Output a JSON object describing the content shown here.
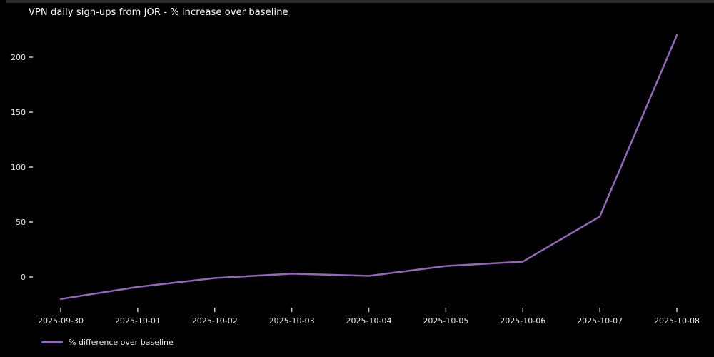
{
  "title": "VPN daily sign-ups from JOR - % increase over baseline",
  "legend": {
    "label": "% difference over baseline"
  },
  "colors": {
    "background": "#000000",
    "line": "#9467bd",
    "tick": "#cfcfcf",
    "text": "#ffffff"
  },
  "chart_data": {
    "type": "line",
    "title": "VPN daily sign-ups from JOR - % increase over baseline",
    "categories": [
      "2025-09-30",
      "2025-10-01",
      "2025-10-02",
      "2025-10-03",
      "2025-10-04",
      "2025-10-05",
      "2025-10-06",
      "2025-10-07",
      "2025-10-08"
    ],
    "series": [
      {
        "name": "% difference over baseline",
        "values": [
          -20,
          -9,
          -1,
          3,
          1,
          10,
          14,
          55,
          220
        ],
        "color": "#9467bd"
      }
    ],
    "xlabel": "",
    "ylabel": "",
    "yticks": [
      0,
      50,
      100,
      150,
      200
    ],
    "ylim": [
      -25,
      225
    ],
    "grid": false,
    "legend_position": "lower-left",
    "background": "#000000"
  }
}
